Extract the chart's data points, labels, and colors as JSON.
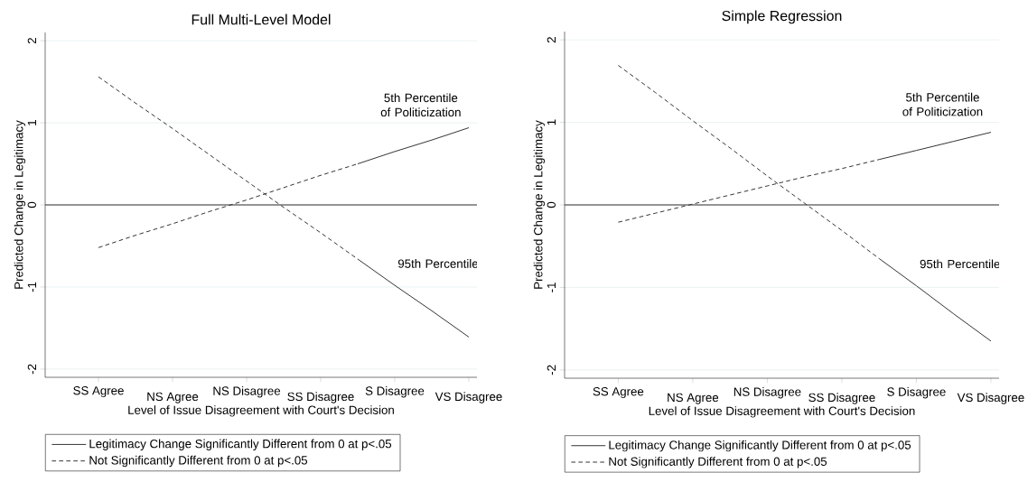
{
  "chart_data": [
    {
      "type": "line",
      "title": "Full Multi-Level Model",
      "xlabel": "Level of Issue Disagreement with Court's Decision",
      "ylabel": "Predicted Change in Legitimacy",
      "categories": [
        "SS Agree",
        null,
        "NS Agree",
        null,
        "NS Disagree",
        null,
        "SS Disagree",
        null,
        "S Disagree",
        null,
        "VS Disagree"
      ],
      "ylim": [
        -2.1,
        2.1
      ],
      "yticks": [
        -2,
        -1,
        0,
        1,
        2
      ],
      "grid": "y",
      "legend": "bottom",
      "ref_lines": [
        {
          "axis": "y",
          "value": 0,
          "color": "#333333"
        }
      ],
      "series": [
        {
          "name": "Legitimacy Change Significantly Different from 0 at p<.05",
          "color": "#333333",
          "line_style": "solid",
          "values": [
            null,
            null,
            null,
            null,
            null,
            null,
            null,
            0.5,
            0.65,
            0.79,
            0.94
          ]
        },
        {
          "name": "Not Significantly Different from 0 at p<.05",
          "color": "#333333",
          "line_style": "dashed",
          "values": [
            -0.52,
            -0.37,
            -0.23,
            -0.08,
            0.06,
            0.21,
            0.36,
            0.5,
            null,
            null,
            null
          ]
        },
        {
          "color": "#333333",
          "line_style": "solid",
          "values": [
            null,
            null,
            null,
            null,
            null,
            null,
            null,
            -0.66,
            -0.98,
            -1.29,
            -1.61
          ]
        },
        {
          "color": "#333333",
          "line_style": "dashed",
          "values": [
            1.56,
            1.24,
            0.93,
            0.61,
            0.29,
            -0.03,
            -0.34,
            -0.66,
            null,
            null,
            null
          ]
        }
      ],
      "annotations": [
        "5th Percentile of Politicization",
        "95th Percentile"
      ]
    },
    {
      "type": "line",
      "title": "Simple Regression",
      "xlabel": "Level of Issue Disagreement with Court's Decision",
      "ylabel": "Predicted Change in Legitimacy",
      "categories": [
        "SS Agree",
        null,
        "NS Agree",
        null,
        "NS Disagree",
        null,
        "SS Disagree",
        null,
        "S Disagree",
        null,
        "VS Disagree"
      ],
      "ylim": [
        -2.1,
        2.1
      ],
      "yticks": [
        -2,
        -1,
        0,
        1,
        2
      ],
      "grid": "y",
      "legend": "bottom",
      "ref_lines": [
        {
          "axis": "y",
          "value": 0,
          "color": "#333333"
        }
      ],
      "series": [
        {
          "name": "Legitimacy Change Significantly Different from 0 at p<.05",
          "color": "#333333",
          "line_style": "solid",
          "values": [
            null,
            null,
            null,
            null,
            null,
            null,
            null,
            0.55,
            0.66,
            0.77,
            0.88
          ]
        },
        {
          "name": "Not Significantly Different from 0 at p<.05",
          "color": "#333333",
          "line_style": "dashed",
          "values": [
            -0.21,
            -0.1,
            0.01,
            0.12,
            0.23,
            0.34,
            0.44,
            0.55,
            null,
            null,
            null
          ]
        },
        {
          "color": "#333333",
          "line_style": "solid",
          "values": [
            null,
            null,
            null,
            null,
            null,
            null,
            null,
            -0.65,
            -0.98,
            -1.32,
            -1.65
          ]
        },
        {
          "color": "#333333",
          "line_style": "dashed",
          "values": [
            1.69,
            1.36,
            1.02,
            0.69,
            0.35,
            0.02,
            -0.31,
            -0.65,
            null,
            null,
            null
          ]
        }
      ],
      "annotations": [
        "5th Percentile of Politicization",
        "95th Percentile"
      ]
    }
  ]
}
